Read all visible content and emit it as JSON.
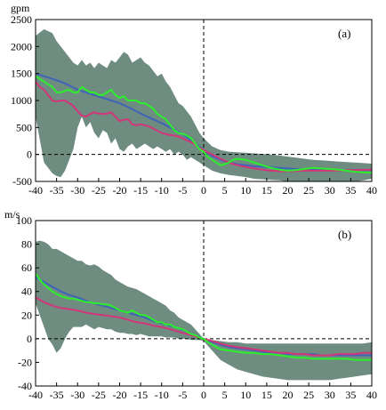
{
  "colors": {
    "band": "#6f8c80",
    "blue": "#3f64b8",
    "magenta": "#d2367a",
    "green": "#2dee2d"
  },
  "chart_data": [
    {
      "type": "line",
      "panel_label": "(a)",
      "unit": "gpm",
      "xlim": [
        -40,
        40
      ],
      "ylim": [
        -500,
        2500
      ],
      "xticks": [
        -40,
        -35,
        -30,
        -25,
        -20,
        -15,
        -10,
        -5,
        0,
        5,
        10,
        15,
        20,
        25,
        30,
        35,
        40
      ],
      "yticks": [
        -500,
        0,
        500,
        1000,
        1500,
        2000,
        2500
      ],
      "reference_lines": {
        "y": 0,
        "x": 0,
        "style": "dashed"
      },
      "band": {
        "x": [
          -40,
          -38,
          -36,
          -35,
          -34,
          -33,
          -32,
          -31,
          -30,
          -29,
          -28,
          -27,
          -26,
          -25,
          -24,
          -23,
          -22,
          -21,
          -20,
          -19,
          -18,
          -17,
          -16,
          -15,
          -14,
          -13,
          -12,
          -11,
          -10,
          -9,
          -8,
          -7,
          -6,
          -5,
          -4,
          -3,
          -2,
          -1,
          0,
          2,
          4,
          6,
          8,
          10,
          12,
          14,
          16,
          18,
          20,
          22,
          24,
          26,
          28,
          30,
          32,
          34,
          36,
          38,
          40
        ],
        "upper": [
          2200,
          2320,
          2250,
          2100,
          2000,
          1900,
          1800,
          1700,
          1650,
          1750,
          1650,
          1700,
          1600,
          1700,
          1650,
          1600,
          1750,
          1700,
          1800,
          1900,
          1850,
          1700,
          1750,
          1800,
          1700,
          1650,
          1550,
          1450,
          1500,
          1350,
          1250,
          1100,
          950,
          900,
          800,
          700,
          550,
          400,
          300,
          150,
          80,
          50,
          40,
          30,
          20,
          10,
          0,
          -20,
          -40,
          -60,
          -80,
          -100,
          -110,
          -120,
          -130,
          -140,
          -150,
          -160,
          -170
        ],
        "lower": [
          700,
          -150,
          -350,
          -400,
          -420,
          -300,
          -100,
          100,
          500,
          700,
          500,
          600,
          400,
          300,
          450,
          400,
          200,
          300,
          100,
          50,
          150,
          200,
          100,
          150,
          200,
          150,
          100,
          150,
          100,
          50,
          100,
          0,
          50,
          0,
          -100,
          -50,
          -100,
          -150,
          -200,
          -300,
          -350,
          -380,
          -400,
          -420,
          -450,
          -460,
          -470,
          -480,
          -500,
          -510,
          -520,
          -520,
          -520,
          -520,
          -520,
          -520,
          -500,
          -480,
          -450
        ]
      },
      "series": [
        {
          "color_key": "blue",
          "x": [
            -40,
            -38,
            -36,
            -34,
            -32,
            -30,
            -28,
            -26,
            -24,
            -22,
            -20,
            -18,
            -16,
            -14,
            -12,
            -10,
            -8,
            -6,
            -4,
            -2,
            0,
            2,
            4,
            6,
            8,
            10,
            12,
            14,
            16,
            18,
            20,
            22,
            24,
            26,
            28,
            30,
            32,
            34,
            36,
            38,
            40
          ],
          "y": [
            1500,
            1450,
            1400,
            1350,
            1280,
            1200,
            1150,
            1100,
            1050,
            1000,
            950,
            880,
            800,
            720,
            650,
            580,
            500,
            420,
            320,
            200,
            80,
            -30,
            -100,
            -150,
            -180,
            -200,
            -220,
            -230,
            -240,
            -250,
            -260,
            -270,
            -280,
            -280,
            -285,
            -285,
            -290,
            -290,
            -290,
            -290,
            -290
          ]
        },
        {
          "color_key": "magenta",
          "x": [
            -40,
            -39,
            -38,
            -37,
            -36,
            -35,
            -34,
            -33,
            -32,
            -31,
            -30,
            -29,
            -28,
            -27,
            -26,
            -25,
            -24,
            -23,
            -22,
            -21,
            -20,
            -19,
            -18,
            -17,
            -16,
            -15,
            -14,
            -13,
            -12,
            -11,
            -10,
            -9,
            -8,
            -7,
            -6,
            -5,
            -4,
            -3,
            -2,
            -1,
            0,
            2,
            4,
            6,
            8,
            10,
            12,
            14,
            16,
            18,
            20,
            22,
            24,
            26,
            28,
            30,
            32,
            34,
            36,
            38,
            40
          ],
          "y": [
            1350,
            1250,
            1200,
            1100,
            1000,
            980,
            1000,
            1000,
            950,
            900,
            800,
            720,
            700,
            750,
            780,
            760,
            750,
            760,
            780,
            700,
            620,
            640,
            650,
            560,
            540,
            560,
            540,
            520,
            480,
            440,
            400,
            380,
            360,
            350,
            330,
            300,
            260,
            230,
            180,
            120,
            80,
            0,
            -80,
            -150,
            -200,
            -230,
            -260,
            -280,
            -300,
            -310,
            -310,
            -305,
            -300,
            -300,
            -300,
            -300,
            -295,
            -290,
            -290,
            -285,
            -280
          ]
        },
        {
          "color_key": "green",
          "x": [
            -40,
            -39,
            -38,
            -37,
            -36,
            -35,
            -34,
            -33,
            -32,
            -31,
            -30,
            -29,
            -28,
            -27,
            -26,
            -25,
            -24,
            -23,
            -22,
            -21,
            -20,
            -19,
            -18,
            -17,
            -16,
            -15,
            -14,
            -13,
            -12,
            -11,
            -10,
            -9,
            -8,
            -7,
            -6,
            -5,
            -4,
            -3,
            -2,
            -1,
            0,
            1,
            2,
            3,
            4,
            5,
            6,
            7,
            8,
            10,
            12,
            14,
            16,
            18,
            20,
            22,
            24,
            26,
            28,
            30,
            32,
            34,
            36,
            38,
            40
          ],
          "y": [
            1450,
            1400,
            1350,
            1300,
            1250,
            1150,
            1150,
            1180,
            1200,
            1150,
            1150,
            1250,
            1200,
            1150,
            1150,
            1100,
            1100,
            1150,
            1200,
            1100,
            1050,
            1080,
            1000,
            1000,
            1000,
            950,
            950,
            900,
            850,
            750,
            700,
            650,
            550,
            450,
            400,
            380,
            350,
            300,
            200,
            100,
            50,
            -50,
            -100,
            -150,
            -200,
            -180,
            -150,
            -100,
            -80,
            -100,
            -150,
            -200,
            -250,
            -280,
            -300,
            -290,
            -270,
            -250,
            -260,
            -270,
            -280,
            -300,
            -320,
            -330,
            -340
          ]
        }
      ]
    },
    {
      "type": "line",
      "panel_label": "(b)",
      "unit": "m/s",
      "xlim": [
        -40,
        40
      ],
      "ylim": [
        -40,
        100
      ],
      "xticks": [
        -40,
        -35,
        -30,
        -25,
        -20,
        -15,
        -10,
        -5,
        0,
        5,
        10,
        15,
        20,
        25,
        30,
        35,
        40
      ],
      "yticks": [
        -40,
        -20,
        0,
        20,
        40,
        60,
        80,
        100
      ],
      "reference_lines": {
        "y": 0,
        "x": 0,
        "style": "dashed"
      },
      "band": {
        "x": [
          -40,
          -39,
          -38,
          -37,
          -36,
          -35,
          -34,
          -33,
          -32,
          -31,
          -30,
          -29,
          -28,
          -27,
          -26,
          -25,
          -24,
          -23,
          -22,
          -21,
          -20,
          -19,
          -18,
          -17,
          -16,
          -15,
          -14,
          -13,
          -12,
          -11,
          -10,
          -9,
          -8,
          -7,
          -6,
          -5,
          -4,
          -3,
          -2,
          -1,
          0,
          2,
          4,
          6,
          8,
          10,
          12,
          14,
          16,
          18,
          20,
          22,
          24,
          26,
          28,
          30,
          32,
          34,
          36,
          38,
          40
        ],
        "upper": [
          82,
          83,
          82,
          80,
          76,
          76,
          74,
          72,
          70,
          68,
          66,
          66,
          63,
          62,
          63,
          61,
          58,
          56,
          54,
          50,
          48,
          46,
          44,
          43,
          42,
          40,
          38,
          36,
          34,
          32,
          30,
          28,
          24,
          22,
          18,
          16,
          14,
          12,
          8,
          4,
          0,
          -1,
          -2,
          -3,
          -3,
          -4,
          -4,
          -4,
          -4,
          -4,
          -4,
          -4,
          -4,
          -4,
          -4,
          -4,
          -4,
          -4,
          -4,
          -4,
          -3
        ],
        "lower": [
          30,
          20,
          10,
          0,
          -5,
          -12,
          -8,
          0,
          6,
          10,
          10,
          10,
          12,
          10,
          8,
          10,
          9,
          8,
          8,
          6,
          5,
          5,
          4,
          4,
          3,
          4,
          3,
          2,
          2,
          2,
          2,
          1,
          1,
          1,
          0,
          0,
          0,
          -1,
          -1,
          -1,
          -2,
          -10,
          -18,
          -22,
          -26,
          -28,
          -30,
          -32,
          -33,
          -34,
          -35,
          -35,
          -35,
          -35,
          -35,
          -35,
          -34,
          -33,
          -32,
          -31,
          -30
        ]
      },
      "series": [
        {
          "color_key": "blue",
          "x": [
            -40,
            -38,
            -36,
            -34,
            -32,
            -30,
            -28,
            -26,
            -24,
            -22,
            -20,
            -18,
            -16,
            -14,
            -12,
            -10,
            -8,
            -6,
            -4,
            -2,
            0,
            2,
            4,
            6,
            8,
            10,
            12,
            14,
            16,
            18,
            20,
            22,
            24,
            26,
            28,
            30,
            32,
            34,
            36,
            38,
            40
          ],
          "y": [
            52,
            48,
            44,
            40,
            37,
            35,
            32,
            30,
            28,
            26,
            24,
            22,
            20,
            18,
            15,
            13,
            11,
            9,
            6,
            3,
            0,
            -3,
            -5,
            -7,
            -8,
            -9,
            -10,
            -11,
            -12,
            -12,
            -13,
            -13,
            -13,
            -13,
            -14,
            -14,
            -14,
            -14,
            -14,
            -14,
            -14
          ]
        },
        {
          "color_key": "magenta",
          "x": [
            -40,
            -38,
            -36,
            -34,
            -32,
            -30,
            -28,
            -26,
            -24,
            -22,
            -20,
            -18,
            -16,
            -14,
            -12,
            -10,
            -8,
            -6,
            -4,
            -2,
            0,
            2,
            4,
            6,
            8,
            10,
            12,
            14,
            16,
            18,
            20,
            22,
            24,
            26,
            28,
            30,
            32,
            34,
            36,
            38,
            40
          ],
          "y": [
            35,
            31,
            28,
            26,
            25,
            24,
            22,
            21,
            20,
            19,
            18,
            16,
            14,
            13,
            11,
            10,
            8,
            6,
            4,
            2,
            0,
            -2,
            -4,
            -6,
            -7,
            -8,
            -9,
            -10,
            -11,
            -12,
            -12,
            -13,
            -13,
            -14,
            -14,
            -14,
            -13,
            -13,
            -13,
            -12,
            -12
          ]
        },
        {
          "color_key": "green",
          "x": [
            -40,
            -39,
            -38,
            -37,
            -36,
            -35,
            -34,
            -33,
            -32,
            -31,
            -30,
            -29,
            -28,
            -27,
            -26,
            -25,
            -24,
            -23,
            -22,
            -21,
            -20,
            -19,
            -18,
            -17,
            -16,
            -15,
            -14,
            -13,
            -12,
            -11,
            -10,
            -9,
            -8,
            -7,
            -6,
            -5,
            -4,
            -3,
            -2,
            -1,
            0,
            1,
            2,
            3,
            4,
            6,
            8,
            10,
            12,
            14,
            16,
            18,
            20,
            22,
            24,
            26,
            28,
            30,
            32,
            34,
            36,
            38,
            40
          ],
          "y": [
            55,
            50,
            46,
            43,
            40,
            38,
            36,
            35,
            34,
            34,
            33,
            32,
            31,
            31,
            30,
            30,
            29,
            29,
            28,
            26,
            24,
            23,
            22,
            24,
            22,
            20,
            20,
            18,
            16,
            14,
            14,
            12,
            12,
            10,
            9,
            8,
            6,
            4,
            3,
            1,
            0,
            -3,
            -5,
            -7,
            -9,
            -10,
            -11,
            -12,
            -12,
            -13,
            -13,
            -14,
            -15,
            -16,
            -16,
            -17,
            -17,
            -17,
            -17,
            -17,
            -18,
            -18,
            -18
          ]
        }
      ]
    }
  ]
}
